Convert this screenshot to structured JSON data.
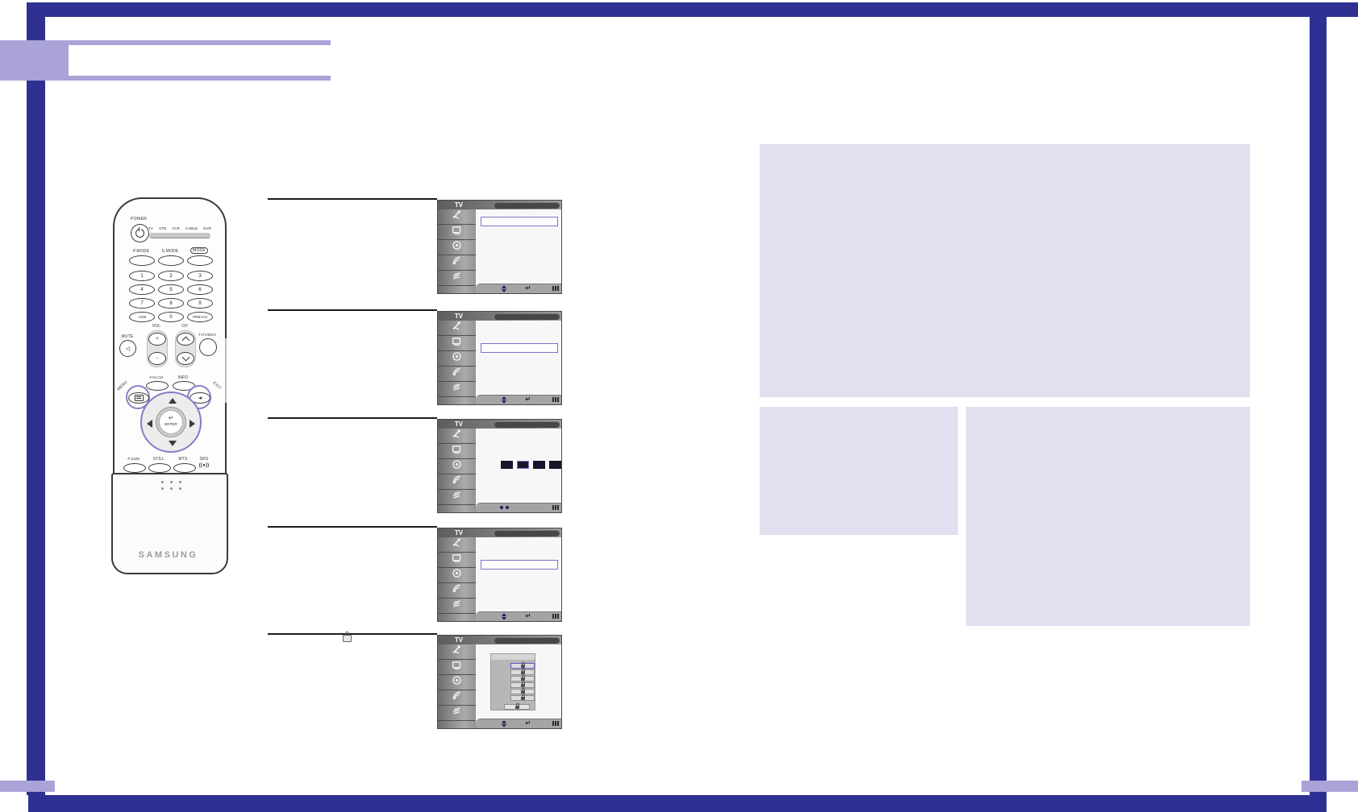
{
  "page": {
    "title": "",
    "colors": {
      "frame": "#2e3192",
      "accent": "#a9a3d8",
      "placeholder": "#e2dff1",
      "selection": "#7b76c9",
      "highlight_ring": "#8781c7"
    }
  },
  "remote": {
    "brand": "SAMSUNG",
    "power_label": "POWER",
    "mode_indicators": [
      "TV",
      "STB",
      "VCR",
      "CABLE",
      "DVD"
    ],
    "mode_buttons": [
      "P.MODE",
      "S.MODE",
      "MODE"
    ],
    "keypad": [
      [
        "1",
        "2",
        "3"
      ],
      [
        "4",
        "5",
        "6"
      ],
      [
        "7",
        "8",
        "9"
      ],
      [
        "+100",
        "0",
        "PRE-CH"
      ]
    ],
    "vol_label": "VOL",
    "ch_label": "CH",
    "vol_buttons": [
      "+",
      "−"
    ],
    "ch_buttons": [
      "chevron-up-icon",
      "chevron-down-icon"
    ],
    "mute_label": "MUTE",
    "mute_icon": "speaker-mute-icon",
    "tv_video_label": "TV/VIDEO",
    "fav_ch_label": "FAV.CH",
    "info_label": "INFO",
    "menu_label": "MENU",
    "menu_icon": "menu-screen-icon",
    "exit_label": "EXIT",
    "exit_icon": "exit-arrow-icon",
    "enter_label": "ENTER",
    "enter_icon": "↵",
    "bottom_buttons": [
      "P.SIZE",
      "STILL",
      "MTS",
      "SRS"
    ],
    "srs_symbol": "((●))",
    "highlighted_buttons": [
      "menu-button",
      "exit-button",
      "dpad-ring"
    ]
  },
  "tv_menu": {
    "header_label": "TV",
    "sidebar_icons": [
      "input-antenna-icon",
      "picture-icon",
      "sound-icon",
      "channel-dish-icon",
      "setup-icon"
    ],
    "footer_icons": {
      "move": "move-updown-icon",
      "enter": "enter-icon",
      "menu": "menu-bars-icon",
      "digits": "digit-dots-icon"
    }
  },
  "steps": [
    {
      "screen": {
        "type": "menu-highlight",
        "highlight_row": 1,
        "footer": [
          "move",
          "enter",
          "menu"
        ]
      }
    },
    {
      "screen": {
        "type": "menu-highlight",
        "highlight_row": 2,
        "footer": [
          "move",
          "enter",
          "menu"
        ]
      }
    },
    {
      "screen": {
        "type": "pin-entry",
        "pin_boxes": 4,
        "active_box": 2,
        "footer": [
          "digits",
          "menu"
        ]
      }
    },
    {
      "screen": {
        "type": "menu-highlight",
        "highlight_row": 2,
        "footer": [
          "move",
          "enter",
          "menu"
        ]
      }
    },
    {
      "inline_icon": "padlock-icon",
      "screen": {
        "type": "lock-list",
        "lock_rows": 6,
        "selected_row": 1,
        "extra_row": true,
        "footer": [
          "move",
          "enter",
          "menu"
        ]
      }
    }
  ]
}
